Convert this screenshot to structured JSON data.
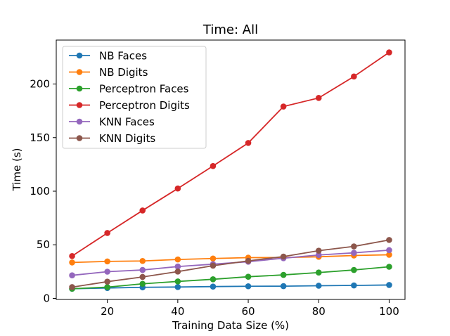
{
  "chart_data": {
    "type": "line",
    "title": "Time: All",
    "xlabel": "Training Data Size (%)",
    "ylabel": "Time (s)",
    "x": [
      10,
      20,
      30,
      40,
      50,
      60,
      70,
      80,
      90,
      100
    ],
    "xlim": [
      5.5,
      104.5
    ],
    "ylim": [
      -1,
      241
    ],
    "xticks": [
      20,
      40,
      60,
      80,
      100
    ],
    "yticks": [
      0,
      50,
      100,
      150,
      200
    ],
    "grid": false,
    "legend_position": "top-left",
    "series": [
      {
        "name": "NB Faces",
        "color": "#1f77b4",
        "values": [
          9.0,
          9.7,
          10.3,
          10.6,
          11.0,
          11.3,
          11.4,
          11.8,
          12.1,
          12.5
        ]
      },
      {
        "name": "NB Digits",
        "color": "#ff7f0e",
        "values": [
          33.5,
          34.5,
          34.9,
          36.3,
          37.2,
          38.0,
          38.1,
          38.8,
          40.0,
          40.7
        ]
      },
      {
        "name": "Perceptron Faces",
        "color": "#2ca02c",
        "values": [
          9.0,
          10.5,
          13.6,
          15.8,
          17.8,
          20.2,
          21.9,
          24.1,
          26.5,
          29.5
        ]
      },
      {
        "name": "Perceptron Digits",
        "color": "#d62728",
        "values": [
          39.5,
          61.0,
          82.0,
          102.5,
          123.5,
          145.0,
          179.0,
          187.0,
          207.0,
          229.5
        ]
      },
      {
        "name": "KNN Faces",
        "color": "#9467bd",
        "values": [
          21.5,
          24.9,
          26.5,
          29.7,
          31.9,
          34.2,
          37.5,
          40.5,
          42.5,
          45.0
        ]
      },
      {
        "name": "KNN Digits",
        "color": "#8c564b",
        "values": [
          10.5,
          15.6,
          20.0,
          25.0,
          30.5,
          35.0,
          39.0,
          44.5,
          48.5,
          54.5
        ]
      }
    ]
  }
}
